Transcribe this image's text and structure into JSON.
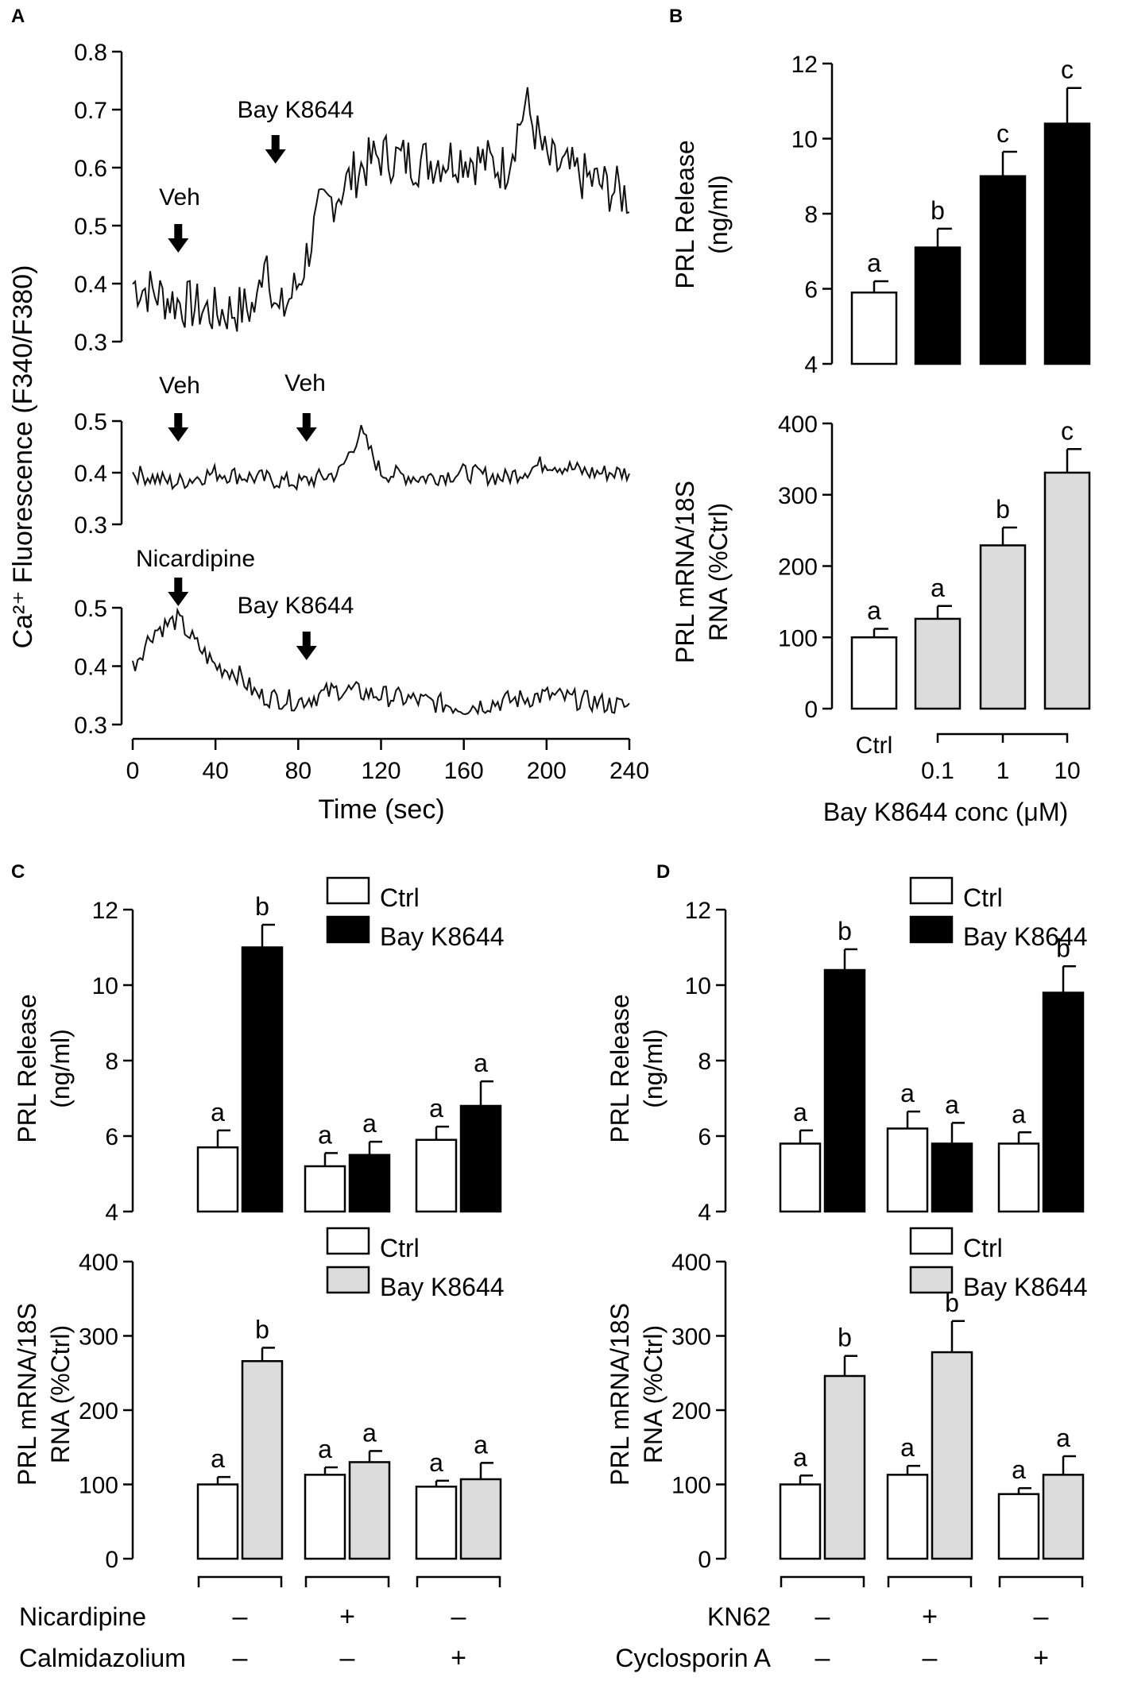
{
  "panel_labels": {
    "a": "A",
    "b": "B",
    "c": "C",
    "d": "D"
  },
  "shared_text": {
    "ylabel_release_1": "PRL Release",
    "ylabel_release_2": "(ng/ml)",
    "ylabel_mrna_1": "PRL mRNA/18S",
    "ylabel_mrna_2": "RNA (%Ctrl)",
    "legend_ctrl": "Ctrl",
    "legend_bay": "Bay K8644",
    "minus": "–",
    "plus": "+"
  },
  "panel_a_text": {
    "ylabel": "Ca²⁺ Fluorescence  (F340/F380)",
    "xlabel": "Time (sec)",
    "arrows": [
      "Veh",
      "Bay K8644",
      "Veh",
      "Veh",
      "Nicardipine",
      "Bay K8644"
    ]
  },
  "panel_b_text": {
    "xlabel": "Bay K8644 conc (μM)",
    "categories": [
      "Ctrl",
      "0.1",
      "1",
      "10"
    ]
  },
  "panel_c_text": {
    "rows": [
      "Nicardipine",
      "Calmidazolium"
    ]
  },
  "panel_d_text": {
    "rows": [
      "KN62",
      "Cyclosporin A"
    ]
  },
  "chart_data": [
    {
      "id": "A",
      "type": "line",
      "ylabel": "Ca2+ Fluorescence  (F340/F380)",
      "xlabel": "Time (sec)",
      "x_ticks": [
        0,
        40,
        80,
        120,
        160,
        200,
        240
      ],
      "xlim": [
        0,
        240
      ],
      "traces": [
        {
          "name": "Veh then Bay K8644",
          "ylim": [
            0.3,
            0.8
          ],
          "yticks": [
            0.3,
            0.4,
            0.5,
            0.6,
            0.7,
            0.8
          ],
          "x": [
            0,
            20,
            40,
            60,
            64,
            70,
            80,
            90,
            100,
            110,
            120,
            140,
            160,
            180,
            190,
            200,
            220,
            240
          ],
          "y": [
            0.4,
            0.37,
            0.35,
            0.36,
            0.47,
            0.34,
            0.4,
            0.52,
            0.56,
            0.6,
            0.62,
            0.61,
            0.62,
            0.6,
            0.71,
            0.61,
            0.58,
            0.55
          ],
          "arrows": [
            {
              "label": "Veh",
              "x": 22
            },
            {
              "label": "Bay K8644",
              "x": 69
            }
          ]
        },
        {
          "name": "Veh then Veh",
          "ylim": [
            0.3,
            0.5
          ],
          "yticks": [
            0.3,
            0.4,
            0.5
          ],
          "x": [
            0,
            20,
            40,
            60,
            80,
            100,
            110,
            120,
            140,
            160,
            180,
            200,
            220,
            240
          ],
          "y": [
            0.4,
            0.38,
            0.4,
            0.39,
            0.38,
            0.4,
            0.48,
            0.4,
            0.39,
            0.4,
            0.39,
            0.42,
            0.4,
            0.4
          ],
          "arrows": [
            {
              "label": "Veh",
              "x": 22
            },
            {
              "label": "Veh",
              "x": 84
            }
          ]
        },
        {
          "name": "Nicardipine then Bay K8644",
          "ylim": [
            0.3,
            0.5
          ],
          "yticks": [
            0.3,
            0.4,
            0.5
          ],
          "x": [
            0,
            10,
            22,
            30,
            40,
            50,
            60,
            80,
            100,
            120,
            140,
            160,
            180,
            200,
            220,
            240
          ],
          "y": [
            0.4,
            0.46,
            0.48,
            0.44,
            0.4,
            0.39,
            0.35,
            0.34,
            0.36,
            0.35,
            0.34,
            0.33,
            0.34,
            0.35,
            0.34,
            0.33
          ],
          "arrows": [
            {
              "label": "Nicardipine",
              "x": 22
            },
            {
              "label": "Bay K8644",
              "x": 84
            }
          ]
        }
      ]
    },
    {
      "id": "B-top",
      "type": "bar",
      "ylabel": "PRL Release (ng/ml)",
      "categories": [
        "Ctrl",
        "0.1",
        "1",
        "10"
      ],
      "xlabel": "Bay K8644 conc (μM)",
      "values": [
        5.9,
        7.1,
        9.0,
        10.4
      ],
      "errors": [
        0.3,
        0.5,
        0.65,
        0.95
      ],
      "letters": [
        "a",
        "b",
        "c",
        "c"
      ],
      "fills": [
        "white",
        "black",
        "black",
        "black"
      ],
      "ylim": [
        4,
        12
      ],
      "yticks": [
        4,
        6,
        8,
        10,
        12
      ]
    },
    {
      "id": "B-bottom",
      "type": "bar",
      "ylabel": "PRL mRNA/18S RNA (%Ctrl)",
      "categories": [
        "Ctrl",
        "0.1",
        "1",
        "10"
      ],
      "xlabel": "Bay K8644 conc (μM)",
      "values": [
        100,
        126,
        229,
        331
      ],
      "errors": [
        12,
        18,
        25,
        33
      ],
      "letters": [
        "a",
        "a",
        "b",
        "c"
      ],
      "fills": [
        "white",
        "gray",
        "gray",
        "gray"
      ],
      "ylim": [
        0,
        400
      ],
      "yticks": [
        0,
        100,
        200,
        300,
        400
      ]
    },
    {
      "id": "C-top",
      "type": "bar",
      "ylabel": "PRL Release (ng/ml)",
      "groups": [
        "Nicardipine – / Calmidazolium –",
        "Nicardipine + / Calmidazolium –",
        "Nicardipine – / Calmidazolium +"
      ],
      "series": [
        {
          "name": "Ctrl",
          "values": [
            5.7,
            5.2,
            5.9
          ],
          "errors": [
            0.45,
            0.35,
            0.35
          ],
          "letters": [
            "a",
            "a",
            "a"
          ]
        },
        {
          "name": "Bay K8644",
          "values": [
            11.0,
            5.5,
            6.8
          ],
          "errors": [
            0.6,
            0.35,
            0.65
          ],
          "letters": [
            "b",
            "a",
            "a"
          ]
        }
      ],
      "ylim": [
        4,
        12
      ],
      "yticks": [
        4,
        6,
        8,
        10,
        12
      ]
    },
    {
      "id": "C-bottom",
      "type": "bar",
      "ylabel": "PRL mRNA/18S RNA (%Ctrl)",
      "groups": [
        "Nicardipine – / Calmidazolium –",
        "Nicardipine + / Calmidazolium –",
        "Nicardipine – / Calmidazolium +"
      ],
      "series": [
        {
          "name": "Ctrl",
          "values": [
            100,
            113,
            97
          ],
          "errors": [
            10,
            10,
            8
          ],
          "letters": [
            "a",
            "a",
            "a"
          ]
        },
        {
          "name": "Bay K8644",
          "values": [
            266,
            130,
            107
          ],
          "errors": [
            18,
            15,
            22
          ],
          "letters": [
            "b",
            "a",
            "a"
          ]
        }
      ],
      "ylim": [
        0,
        400
      ],
      "yticks": [
        0,
        100,
        200,
        300,
        400
      ]
    },
    {
      "id": "D-top",
      "type": "bar",
      "ylabel": "PRL Release (ng/ml)",
      "groups": [
        "KN62 – / Cyclosporin A –",
        "KN62 + / Cyclosporin A –",
        "KN62 – / Cyclosporin A +"
      ],
      "series": [
        {
          "name": "Ctrl",
          "values": [
            5.8,
            6.2,
            5.8
          ],
          "errors": [
            0.35,
            0.45,
            0.3
          ],
          "letters": [
            "a",
            "a",
            "a"
          ]
        },
        {
          "name": "Bay K8644",
          "values": [
            10.4,
            5.8,
            9.8
          ],
          "errors": [
            0.55,
            0.55,
            0.7
          ],
          "letters": [
            "b",
            "a",
            "b"
          ]
        }
      ],
      "ylim": [
        4,
        12
      ],
      "yticks": [
        4,
        6,
        8,
        10,
        12
      ]
    },
    {
      "id": "D-bottom",
      "type": "bar",
      "ylabel": "PRL mRNA/18S RNA (%Ctrl)",
      "groups": [
        "KN62 – / Cyclosporin A –",
        "KN62 + / Cyclosporin A –",
        "KN62 – / Cyclosporin A +"
      ],
      "series": [
        {
          "name": "Ctrl",
          "values": [
            100,
            113,
            87
          ],
          "errors": [
            12,
            12,
            8
          ],
          "letters": [
            "a",
            "a",
            "a"
          ]
        },
        {
          "name": "Bay K8644",
          "values": [
            246,
            278,
            113
          ],
          "errors": [
            27,
            42,
            25
          ],
          "letters": [
            "b",
            "b",
            "a"
          ]
        }
      ],
      "ylim": [
        0,
        400
      ],
      "yticks": [
        0,
        100,
        200,
        300,
        400
      ]
    }
  ],
  "colors": {
    "ctrl_fill": "#ffffff",
    "bay_release_fill": "#000000",
    "bay_mrna_fill": "#dcdcdc",
    "stroke": "#000000"
  }
}
